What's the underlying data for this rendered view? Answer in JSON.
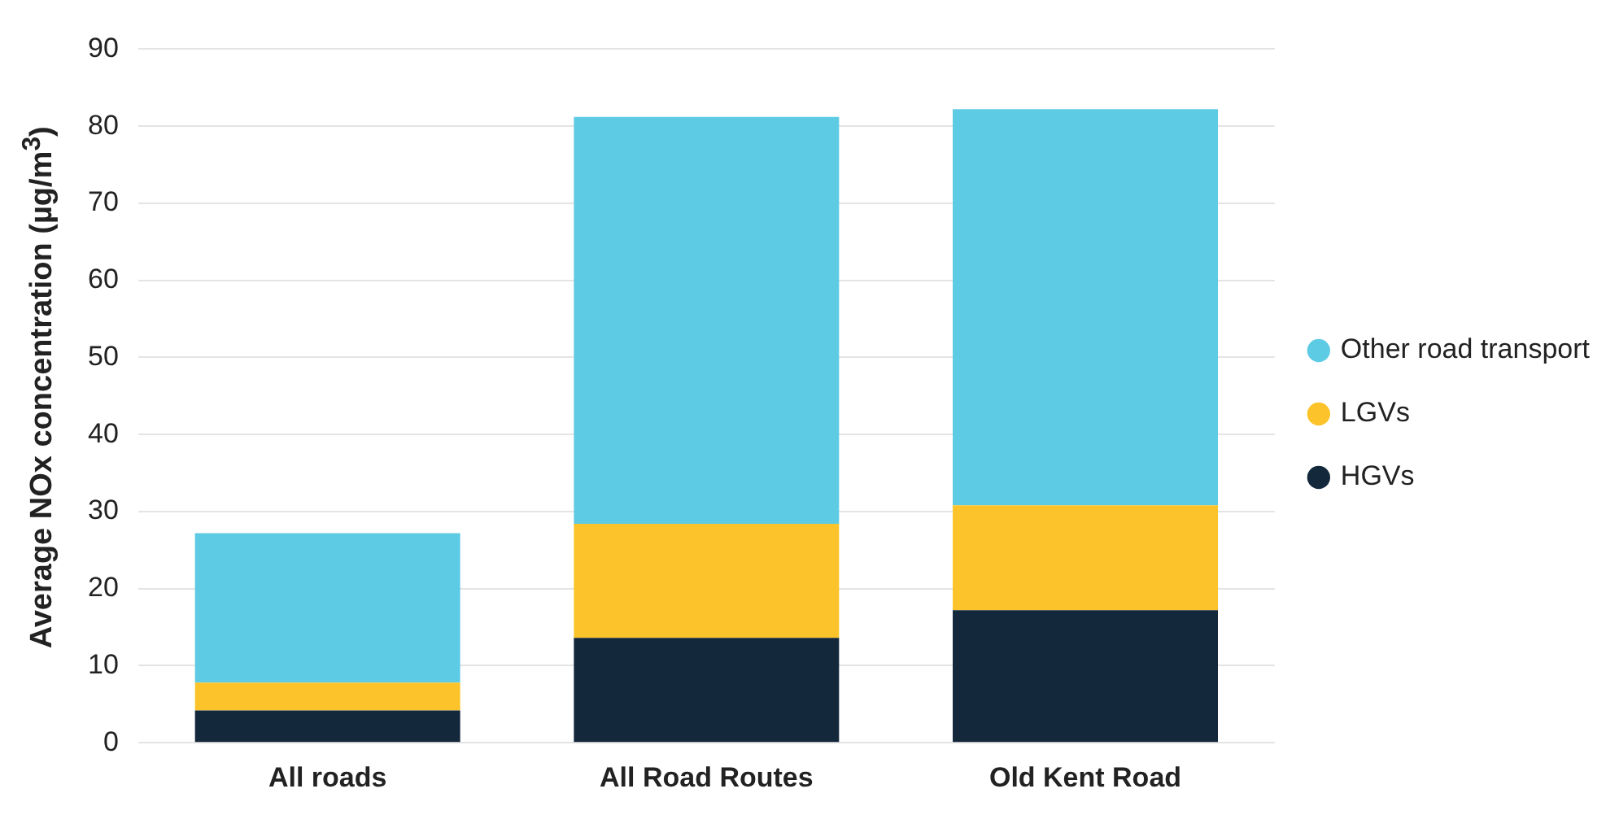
{
  "chart_data": {
    "type": "bar",
    "stacked": true,
    "ylabel": "Average NOx concentration (µg/m$^{3}$)",
    "categories": [
      "All roads",
      "All Road Routes",
      "Old Kent Road"
    ],
    "series": [
      {
        "name": "HGVs",
        "color": "#14283c",
        "values": [
          4.2,
          13.6,
          17.2
        ]
      },
      {
        "name": "LGVs",
        "color": "#fcc42a",
        "values": [
          3.6,
          14.8,
          13.6
        ]
      },
      {
        "name": "Other road transport",
        "color": "#5ecbe4",
        "values": [
          19.4,
          52.8,
          51.4
        ]
      }
    ],
    "ylim": [
      0,
      90
    ],
    "yticks": [
      0,
      10,
      20,
      30,
      40,
      50,
      60,
      70,
      80,
      90
    ],
    "grid": "y",
    "legend": "right"
  }
}
